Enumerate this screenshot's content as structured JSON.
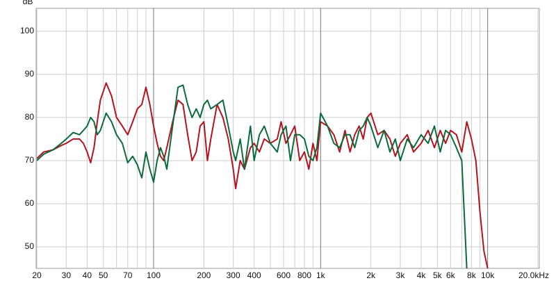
{
  "chart_data": {
    "type": "line",
    "ylabel": "dB",
    "x": [
      20,
      22,
      25,
      28,
      30,
      33,
      36,
      38,
      40,
      42,
      44,
      46,
      48,
      52,
      56,
      60,
      65,
      70,
      75,
      80,
      85,
      90,
      95,
      100,
      105,
      110,
      115,
      120,
      130,
      140,
      150,
      160,
      170,
      180,
      190,
      200,
      210,
      220,
      240,
      260,
      280,
      300,
      310,
      330,
      350,
      380,
      400,
      430,
      460,
      500,
      550,
      580,
      620,
      660,
      700,
      750,
      800,
      850,
      900,
      950,
      1000,
      1100,
      1200,
      1300,
      1400,
      1500,
      1600,
      1700,
      1800,
      1900,
      2000,
      2200,
      2400,
      2600,
      2800,
      3000,
      3300,
      3600,
      4000,
      4400,
      4800,
      5200,
      5600,
      6000,
      6500,
      7000,
      7500,
      8000,
      8500,
      9000,
      9500,
      10000
    ],
    "series": [
      {
        "color": "#b5121b",
        "values": [
          70.5,
          72,
          72.5,
          73.5,
          74,
          75,
          75,
          74,
          72,
          69.5,
          73,
          79,
          84,
          88,
          85,
          80,
          78,
          76,
          79,
          82,
          83,
          87,
          83,
          78,
          74,
          71,
          70,
          73,
          79,
          84,
          83,
          76,
          70,
          72,
          78,
          79,
          70,
          75,
          83,
          80,
          75,
          68,
          63.5,
          70,
          68,
          73,
          74,
          72,
          75,
          74,
          75,
          79,
          74,
          76,
          78,
          70,
          72,
          68,
          74,
          70,
          79,
          78,
          76,
          72,
          77,
          72,
          76,
          78,
          75,
          80,
          81,
          76,
          77,
          75,
          71,
          74,
          76,
          72,
          74,
          77,
          73,
          77,
          74,
          77,
          76,
          72,
          79,
          75,
          70,
          58,
          49,
          45
        ]
      },
      {
        "color": "#0a6b3a",
        "values": [
          70,
          71.5,
          72.5,
          74,
          75,
          76.5,
          76,
          77,
          78,
          80,
          79,
          76,
          77,
          81,
          79,
          76,
          74,
          69.5,
          71,
          69,
          66,
          72,
          68,
          65,
          70,
          73,
          71,
          68,
          78,
          87,
          87.5,
          83,
          80,
          82,
          80,
          83,
          84,
          82,
          83,
          84,
          78,
          72,
          70,
          75,
          68,
          78,
          70,
          76,
          78,
          74,
          72,
          76,
          78,
          70,
          76,
          76,
          75,
          71,
          70,
          73,
          81,
          78,
          74,
          73,
          76,
          76,
          73,
          77,
          78,
          80,
          78,
          73,
          77,
          72,
          75,
          70,
          75,
          73,
          76,
          74,
          78,
          72,
          77,
          76,
          73,
          70,
          45,
          null,
          null,
          null,
          null,
          null
        ]
      }
    ],
    "xscale": "log",
    "xlim": [
      20,
      20000
    ],
    "ylim": [
      45,
      105.3
    ],
    "yticks": [
      50,
      60,
      70,
      80,
      90,
      100
    ],
    "xticks": [
      20,
      30,
      40,
      50,
      70,
      100,
      200,
      300,
      400,
      600,
      800,
      {
        "value": 1000,
        "label": "1k"
      },
      {
        "value": 2000,
        "label": "2k"
      },
      {
        "value": 3000,
        "label": "3k"
      },
      {
        "value": 4000,
        "label": "4k"
      },
      {
        "value": 5000,
        "label": "5k"
      },
      {
        "value": 6000,
        "label": "6k"
      },
      {
        "value": 8000,
        "label": "8k"
      },
      {
        "value": 10000,
        "label": "10k"
      },
      {
        "value": 20000,
        "label": "20.0kHz"
      }
    ],
    "xgrid": [
      60,
      80,
      90,
      500,
      700,
      900,
      7000,
      9000
    ],
    "grid": true
  }
}
